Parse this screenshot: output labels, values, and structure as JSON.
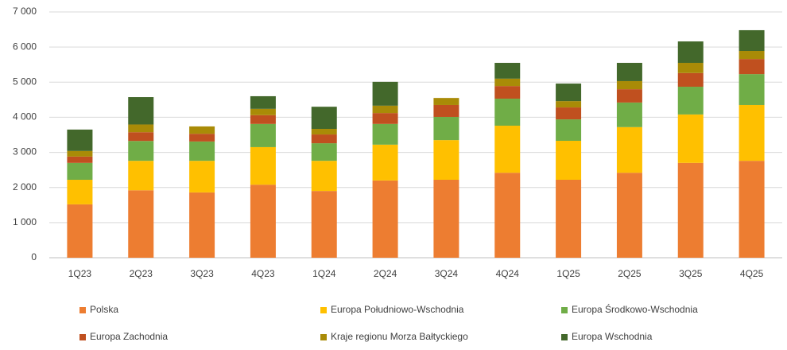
{
  "chart_data": {
    "type": "stacked_bar",
    "categories": [
      "1Q23",
      "2Q23",
      "3Q23",
      "4Q23",
      "1Q24",
      "2Q24",
      "3Q24",
      "4Q24",
      "1Q25",
      "2Q25",
      "3Q25",
      "4Q25"
    ],
    "series": [
      {
        "name": "Polska",
        "color": "#ed7d31",
        "values": [
          1520,
          1920,
          1860,
          2080,
          1900,
          2200,
          2220,
          2420,
          2220,
          2420,
          2700,
          2760
        ]
      },
      {
        "name": "Europa Południowo-Wschodnia",
        "color": "#ffc000",
        "values": [
          700,
          840,
          900,
          1070,
          860,
          1020,
          1130,
          1340,
          1110,
          1300,
          1380,
          1590
        ]
      },
      {
        "name": "Europa Środkowo-Wschodnia",
        "color": "#70ad47",
        "values": [
          480,
          565,
          550,
          660,
          500,
          590,
          660,
          770,
          610,
          700,
          790,
          880
        ]
      },
      {
        "name": "Europa Zachodnia",
        "color": "#c0501f",
        "values": [
          180,
          250,
          220,
          250,
          250,
          310,
          340,
          360,
          340,
          380,
          390,
          430
        ]
      },
      {
        "name": "Kraje regionu Morza Bałtyckiego",
        "color": "#a98b07",
        "values": [
          160,
          220,
          210,
          180,
          160,
          210,
          200,
          210,
          180,
          230,
          290,
          230
        ]
      },
      {
        "name": "Europa Wschodnia",
        "color": "#43682b",
        "values": [
          610,
          780,
          0,
          360,
          630,
          680,
          0,
          450,
          500,
          520,
          610,
          590
        ]
      }
    ],
    "ylim": [
      0,
      7000
    ],
    "yticks": [
      0,
      {
        "value": 1000,
        "label": "1 000"
      },
      {
        "value": 2000,
        "label": "2 000"
      },
      {
        "value": 3000,
        "label": "3 000"
      },
      {
        "value": 4000,
        "label": "4 000"
      },
      {
        "value": 5000,
        "label": "5 000"
      },
      {
        "value": 6000,
        "label": "6 000"
      },
      {
        "value": 7000,
        "label": "7 000"
      }
    ],
    "grid": true,
    "legend": "bottom"
  }
}
